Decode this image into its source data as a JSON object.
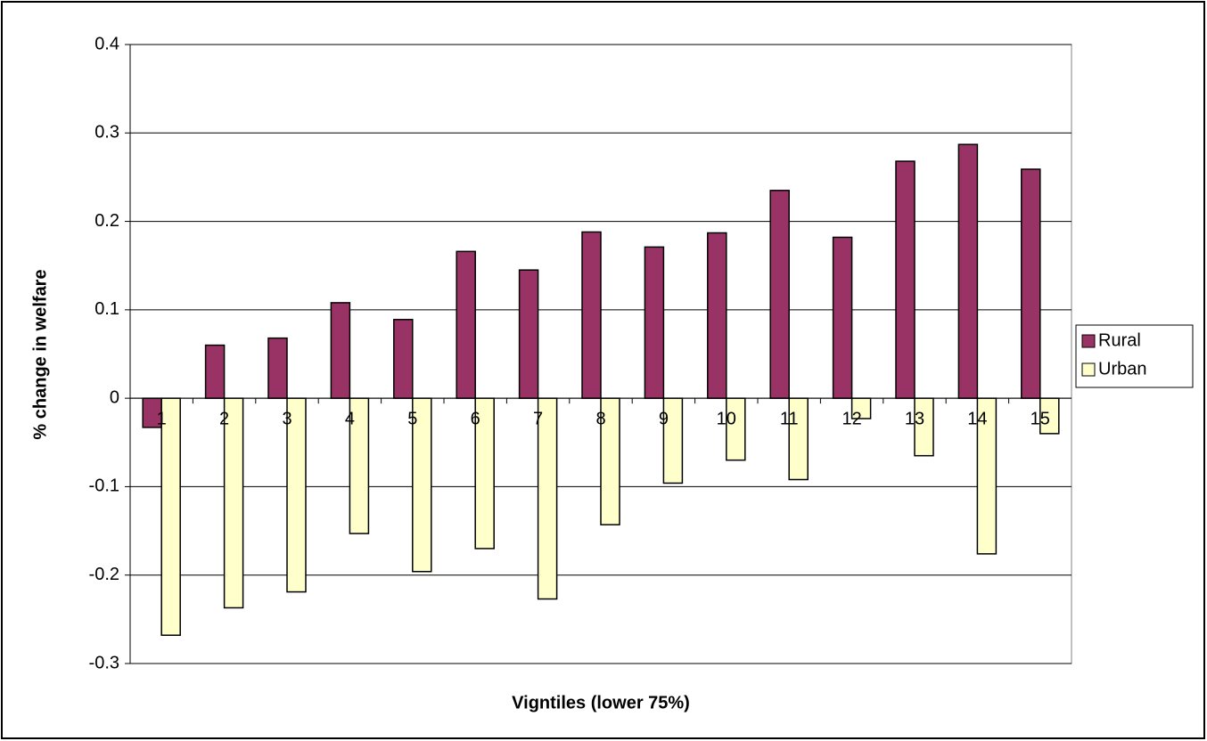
{
  "chart_data": {
    "type": "bar",
    "x_label": "Vigntiles (lower 75%)",
    "y_label": "% change in welfare",
    "categories": [
      "1",
      "2",
      "3",
      "4",
      "5",
      "6",
      "7",
      "8",
      "9",
      "10",
      "11",
      "12",
      "13",
      "14",
      "15"
    ],
    "series": [
      {
        "name": "Rural",
        "color": "#993366",
        "values": [
          -0.033,
          0.06,
          0.068,
          0.108,
          0.089,
          0.166,
          0.145,
          0.188,
          0.171,
          0.187,
          0.235,
          0.182,
          0.268,
          0.287,
          0.259
        ]
      },
      {
        "name": "Urban",
        "color": "#ffffcc",
        "values": [
          -0.268,
          -0.237,
          -0.219,
          -0.153,
          -0.196,
          -0.17,
          -0.227,
          -0.143,
          -0.096,
          -0.07,
          -0.092,
          -0.023,
          -0.065,
          -0.176,
          -0.04
        ]
      }
    ],
    "ylim": [
      -0.3,
      0.4
    ],
    "yticks": [
      -0.3,
      -0.2,
      -0.1,
      0,
      0.1,
      0.2,
      0.3,
      0.4
    ],
    "grid": true,
    "legend": "right"
  }
}
